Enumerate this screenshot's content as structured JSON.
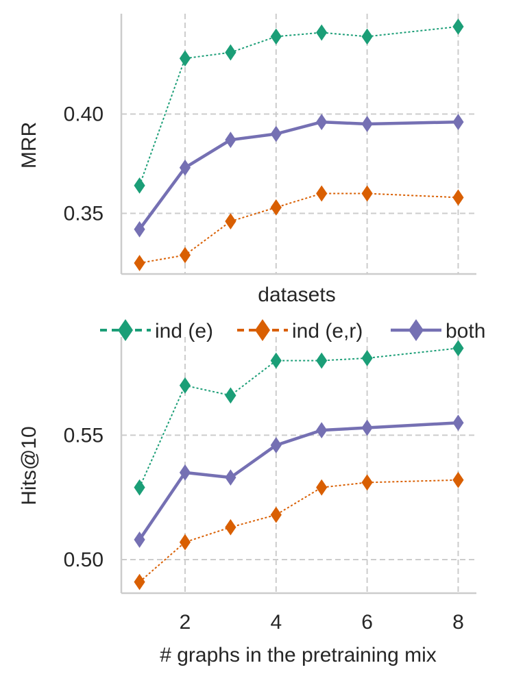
{
  "chart_data": [
    {
      "type": "line",
      "panel": "top",
      "xlabel": "datasets",
      "ylabel": "MRR",
      "xlim": [
        0.6,
        8.4
      ],
      "ylim": [
        0.3195,
        0.4505
      ],
      "x_ticks": [
        2,
        4,
        6,
        8
      ],
      "x_tick_labels": [],
      "y_ticks": [
        0.35,
        0.4
      ],
      "y_tick_labels": [
        "0.35",
        "0.40"
      ],
      "grid": true,
      "x": [
        1,
        2,
        3,
        4,
        5,
        6,
        8
      ],
      "series": [
        {
          "name": "ind (e)",
          "color": "#1b9e77",
          "style": "dotted",
          "values": [
            0.364,
            0.428,
            0.431,
            0.439,
            0.441,
            0.439,
            0.444
          ]
        },
        {
          "name": "ind (e,r)",
          "color": "#d95f02",
          "style": "dotted",
          "values": [
            0.325,
            0.329,
            0.346,
            0.353,
            0.36,
            0.36,
            0.358
          ]
        },
        {
          "name": "both",
          "color": "#7570b3",
          "style": "solid",
          "values": [
            0.342,
            0.373,
            0.387,
            0.39,
            0.396,
            0.395,
            0.396
          ]
        }
      ]
    },
    {
      "type": "line",
      "panel": "bottom",
      "xlabel": "# graphs in the pretraining mix",
      "ylabel": "Hits@10",
      "xlim": [
        0.6,
        8.4
      ],
      "ylim": [
        0.4865,
        0.5895
      ],
      "x_ticks": [
        2,
        4,
        6,
        8
      ],
      "x_tick_labels": [
        "2",
        "4",
        "6",
        "8"
      ],
      "y_ticks": [
        0.5,
        0.55
      ],
      "y_tick_labels": [
        "0.50",
        "0.55"
      ],
      "grid": true,
      "x": [
        1,
        2,
        3,
        4,
        5,
        6,
        8
      ],
      "series": [
        {
          "name": "ind (e)",
          "color": "#1b9e77",
          "style": "dotted",
          "values": [
            0.529,
            0.57,
            0.566,
            0.58,
            0.58,
            0.581,
            0.585
          ]
        },
        {
          "name": "ind (e,r)",
          "color": "#d95f02",
          "style": "dotted",
          "values": [
            0.491,
            0.507,
            0.513,
            0.518,
            0.529,
            0.531,
            0.532
          ]
        },
        {
          "name": "both",
          "color": "#7570b3",
          "style": "solid",
          "values": [
            0.508,
            0.535,
            0.533,
            0.546,
            0.552,
            0.553,
            0.555
          ]
        }
      ]
    }
  ],
  "legend": {
    "placement": "between-panels",
    "entries": [
      {
        "label": "ind (e)",
        "color": "#1b9e77",
        "style": "dotted"
      },
      {
        "label": "ind (e,r)",
        "color": "#d95f02",
        "style": "dotted"
      },
      {
        "label": "both",
        "color": "#7570b3",
        "style": "solid"
      }
    ]
  }
}
